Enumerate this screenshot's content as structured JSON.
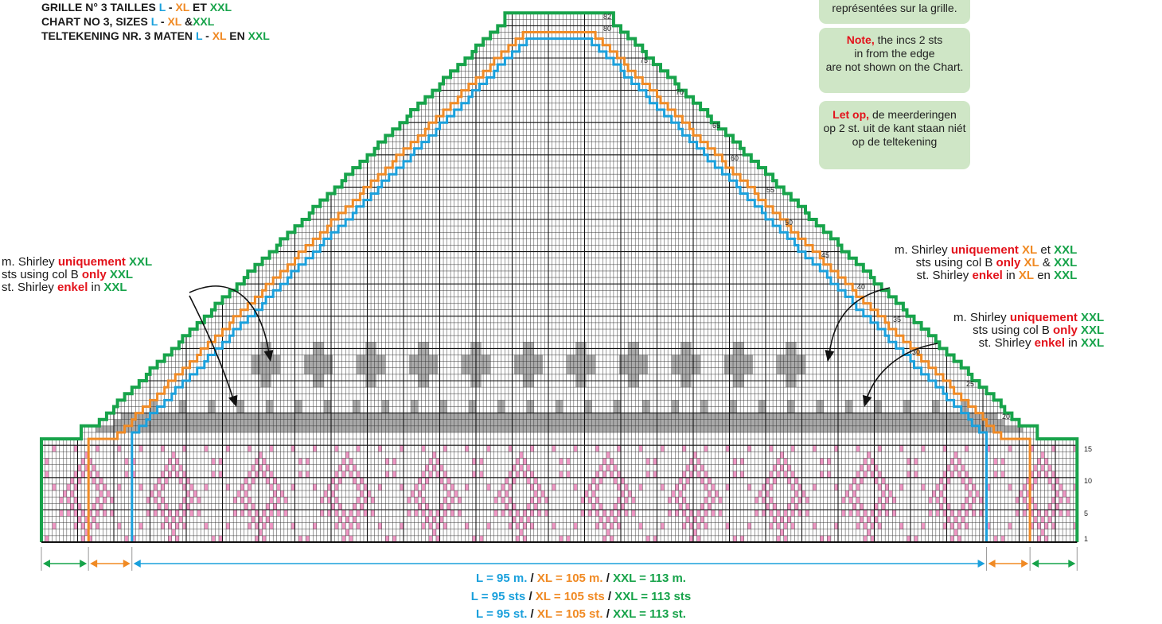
{
  "title": {
    "line1": {
      "prefix": "GRILLE N° 3 TAILLES ",
      "l": "L",
      "sep1": " - ",
      "xl": "XL",
      "sep2": " ET ",
      "xxl": "XXL"
    },
    "line2": {
      "prefix": "CHART NO 3, SIZES ",
      "l": "L",
      "sep1": " - ",
      "xl": "XL",
      "sep2": " &",
      "xxl": "XXL"
    },
    "line3": {
      "prefix": "TELTEKENING NR. 3 MATEN ",
      "l": "L",
      "sep1": " - ",
      "xl": "XL",
      "sep2": " EN ",
      "xxl": "XXL"
    }
  },
  "notes": {
    "fr_tail": "représentées sur la grille.",
    "en": {
      "strong": "Note,",
      "l1": " the incs 2 sts",
      "l2": "in from the edge",
      "l3": "are not shown on the Chart."
    },
    "nl": {
      "strong": "Let op,",
      "l1": " de meerderingen",
      "l2": "op 2 st. uit de kant staan niét",
      "l3": "op de teltekening"
    }
  },
  "labels": {
    "left": {
      "fr": {
        "a": "m. Shirley ",
        "b": "uniquement",
        "c": " XXL"
      },
      "en": {
        "a": "sts using col B ",
        "b": "only",
        "c": " XXL"
      },
      "nl": {
        "a": "st. Shirley ",
        "b": "enkel",
        "c": " in ",
        "d": "XXL"
      }
    },
    "right1": {
      "fr": {
        "a": "m. Shirley ",
        "b": "uniquement",
        "c": " XL",
        "d": " et ",
        "e": "XXL"
      },
      "en": {
        "a": "sts using col B ",
        "b": "only",
        "c": " XL",
        "d": " & ",
        "e": "XXL"
      },
      "nl": {
        "a": "st. Shirley ",
        "b": "enkel",
        "c": " in ",
        "d": "XL",
        "e": " en ",
        "f": "XXL"
      }
    },
    "right2": {
      "fr": {
        "a": "m. Shirley ",
        "b": "uniquement",
        "c": " XXL"
      },
      "en": {
        "a": "sts using col B ",
        "b": "only",
        "c": " XXL"
      },
      "nl": {
        "a": "st. Shirley ",
        "b": "enkel",
        "c": " in ",
        "d": "XXL"
      }
    }
  },
  "row_numbers": [
    "82",
    "80",
    "75",
    "70",
    "65",
    "60",
    "55",
    "50",
    "45",
    "40",
    "35",
    "30",
    "25",
    "20",
    "15",
    "10",
    "5",
    "1"
  ],
  "measurements": {
    "line1": {
      "l": "L = 95 m.",
      "s1": " / ",
      "xl": "XL = 105 m.",
      "s2": " / ",
      "xxl": "XXL = 113 m."
    },
    "line2": {
      "l": "L = 95 sts",
      "s1": " / ",
      "xl": "XL = 105 sts",
      "s2": " / ",
      "xxl": "XXL = 113 sts"
    },
    "line3": {
      "l": "L = 95 st.",
      "s1": " / ",
      "xl": "XL = 105 st.",
      "s2": " / ",
      "xxl": "XXL = 113 st."
    }
  },
  "colors": {
    "L": "#1aa0dc",
    "XL": "#f08a24",
    "XXL": "#17a34a",
    "motif_pink": "#ef97c4",
    "motif_grey": "#a9a9a9",
    "note_bg": "#cfe6c6",
    "highlight": "#e3121b"
  }
}
